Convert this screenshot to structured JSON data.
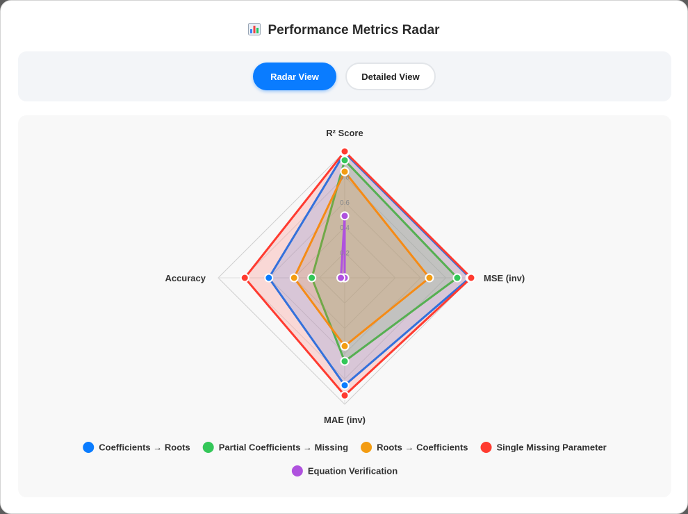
{
  "header": {
    "title": "Performance Metrics Radar",
    "icon": "bar-chart-icon"
  },
  "toggle": {
    "radar_label": "Radar View",
    "detailed_label": "Detailed View",
    "active": "radar",
    "active_color": "#0a7cff"
  },
  "chart_data": {
    "type": "radar",
    "axes": [
      "R² Score",
      "MSE (inv)",
      "MAE (inv)",
      "Accuracy"
    ],
    "ticks": [
      "0.2",
      "0.4",
      "0.6",
      "0.8",
      "1"
    ],
    "range": [
      0,
      1
    ],
    "grid": true,
    "legend_position": "bottom",
    "series": [
      {
        "name": "Coefficients → Roots",
        "color": "#0a7cff",
        "values": [
          0.99,
          0.99,
          0.85,
          0.6
        ]
      },
      {
        "name": "Partial Coefficients → Missing",
        "color": "#34c759",
        "values": [
          0.93,
          0.89,
          0.66,
          0.26
        ]
      },
      {
        "name": "Roots → Coefficients",
        "color": "#f39c12",
        "values": [
          0.84,
          0.67,
          0.54,
          0.4
        ]
      },
      {
        "name": "Single Missing Parameter",
        "color": "#ff3b30",
        "values": [
          1.0,
          1.0,
          0.93,
          0.79
        ]
      },
      {
        "name": "Equation Verification",
        "color": "#af52de",
        "values": [
          0.49,
          0.0,
          0.0,
          0.03
        ]
      }
    ]
  }
}
